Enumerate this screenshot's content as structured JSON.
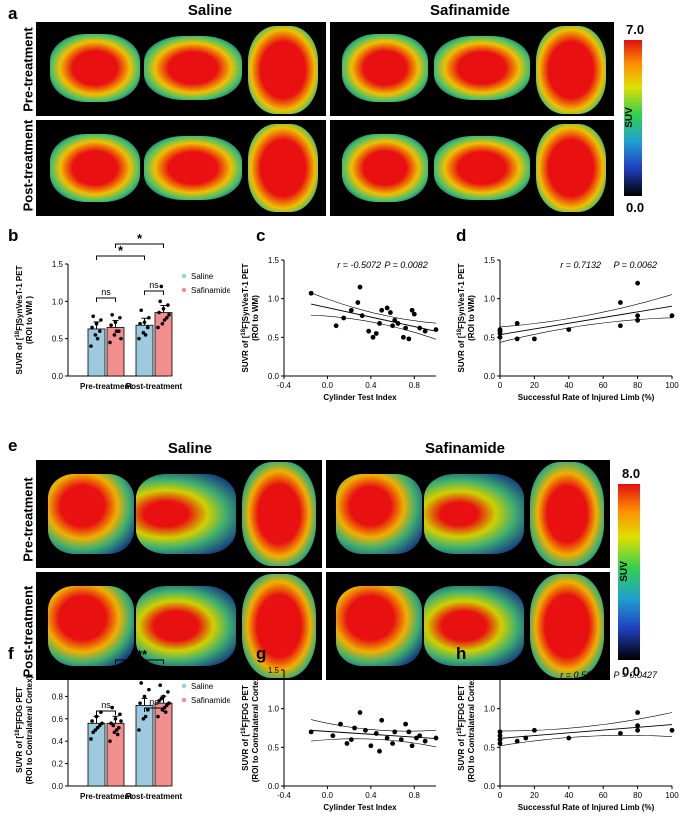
{
  "panel_labels": [
    "a",
    "b",
    "c",
    "d",
    "e",
    "f",
    "g",
    "h"
  ],
  "groups": {
    "saline": "Saline",
    "safinamide": "Safinamide"
  },
  "rows": {
    "pre": "Pre-treatment",
    "post": "Post-treatment"
  },
  "colorbar_a": {
    "max": "7.0",
    "min": "0.0",
    "label": "SUV"
  },
  "colorbar_e": {
    "max": "8.0",
    "min": "0.0",
    "label": "SUV"
  },
  "colors": {
    "saline": "#9ecae1",
    "safinamide": "#f28e8e"
  },
  "chart_data": [
    {
      "id": "b",
      "type": "bar",
      "ylabel": "SUVR of [18F]SynVesT-1 PET (ROI to WM )",
      "ylabel_parts": [
        "SUVR of [",
        "18",
        "F]SynVesT-1 PET"
      ],
      "ylabel_line2": "(ROI to WM )",
      "ylim": [
        0,
        1.5
      ],
      "yticks": [
        "0.0",
        "0.5",
        "1.0",
        "1.5"
      ],
      "categories": [
        "Pre-treatment",
        "Post-treatment"
      ],
      "legend": [
        "Saline",
        "Safinamide"
      ],
      "series": [
        {
          "name": "Saline",
          "values": [
            0.63,
            0.68
          ],
          "points": [
            [
              0.4,
              0.55,
              0.6,
              0.65,
              0.7,
              0.75,
              0.8,
              0.5
            ],
            [
              0.5,
              0.58,
              0.65,
              0.7,
              0.72,
              0.78,
              0.88,
              0.55
            ]
          ]
        },
        {
          "name": "Safinamide",
          "values": [
            0.65,
            0.85
          ],
          "points": [
            [
              0.45,
              0.55,
              0.6,
              0.68,
              0.72,
              0.78,
              0.82,
              0.6,
              0.5
            ],
            [
              0.65,
              0.7,
              0.78,
              0.85,
              0.9,
              0.95,
              1.0,
              0.75,
              0.82,
              1.2
            ]
          ]
        }
      ],
      "annotations": [
        "ns",
        "ns",
        "*",
        "*"
      ]
    },
    {
      "id": "c",
      "type": "scatter",
      "stat_r": "r = -0.5072",
      "stat_p": "P = 0.0082",
      "xlabel": "Cylinder Test Index",
      "ylabel_parts": [
        "SUVR of [",
        "18",
        "F]SynVesT-1 PET"
      ],
      "ylabel_line2": "(ROI to WM)",
      "xlim": [
        -0.4,
        1.0
      ],
      "ylim": [
        0,
        1.5
      ],
      "xticks": [
        "-0.4",
        "0.0",
        "0.4",
        "0.8"
      ],
      "yticks": [
        "0.0",
        "0.5",
        "1.0",
        "1.5"
      ],
      "x": [
        -0.15,
        0.08,
        0.15,
        0.22,
        0.3,
        0.32,
        0.38,
        0.42,
        0.45,
        0.5,
        0.55,
        0.58,
        0.6,
        0.62,
        0.65,
        0.7,
        0.72,
        0.75,
        0.78,
        0.8,
        0.85,
        0.9,
        1.0,
        0.28,
        0.48
      ],
      "y": [
        1.07,
        0.65,
        0.75,
        0.85,
        1.15,
        0.78,
        0.58,
        0.5,
        0.55,
        0.85,
        0.88,
        0.82,
        0.65,
        0.72,
        0.68,
        0.5,
        0.62,
        0.48,
        0.85,
        0.8,
        0.62,
        0.58,
        0.6,
        0.95,
        0.68
      ]
    },
    {
      "id": "d",
      "type": "scatter",
      "stat_r": "r = 0.7132",
      "stat_p": "P = 0.0062",
      "xlabel": "Successful Rate of Injured Limb (%)",
      "ylabel_parts": [
        "SUVR of [",
        "18",
        "F]SynVesT-1 PET"
      ],
      "ylabel_line2": "(ROI to WM)",
      "xlim": [
        0,
        100
      ],
      "ylim": [
        0,
        1.5
      ],
      "xticks": [
        "0",
        "20",
        "40",
        "60",
        "80",
        "100"
      ],
      "yticks": [
        "0.0",
        "0.5",
        "1.0",
        "1.5"
      ],
      "x": [
        0,
        0,
        0,
        0,
        10,
        10,
        20,
        40,
        70,
        70,
        80,
        80,
        80,
        100
      ],
      "y": [
        0.5,
        0.55,
        0.58,
        0.6,
        0.48,
        0.68,
        0.48,
        0.6,
        0.65,
        0.95,
        0.72,
        0.78,
        1.2,
        0.78
      ]
    },
    {
      "id": "f",
      "type": "bar",
      "ylabel_parts": [
        "SUVR of [",
        "18",
        "F]FDG PET"
      ],
      "ylabel_line2": "(ROI to Contralateral Cortex)",
      "ylim": [
        0,
        1.0
      ],
      "yticks": [
        "0.0",
        "0.2",
        "0.4",
        "0.6",
        "0.8",
        "1.0"
      ],
      "categories": [
        "Pre-treatment",
        "Post-treatment"
      ],
      "legend": [
        "Saline",
        "Safinamide"
      ],
      "series": [
        {
          "name": "Saline",
          "values": [
            0.56,
            0.72
          ],
          "points": [
            [
              0.42,
              0.5,
              0.54,
              0.58,
              0.62,
              0.66,
              0.48,
              0.52,
              0.56
            ],
            [
              0.5,
              0.6,
              0.68,
              0.74,
              0.8,
              0.86,
              0.92,
              0.62
            ]
          ]
        },
        {
          "name": "Safinamide",
          "values": [
            0.56,
            0.74
          ],
          "points": [
            [
              0.4,
              0.48,
              0.52,
              0.56,
              0.6,
              0.64,
              0.7,
              0.5,
              0.58,
              0.54,
              0.46
            ],
            [
              0.62,
              0.68,
              0.72,
              0.76,
              0.8,
              0.84,
              0.9,
              0.7,
              0.74,
              0.78,
              0.66
            ]
          ]
        }
      ],
      "annotations": [
        "ns",
        "ns",
        "*",
        "***"
      ]
    },
    {
      "id": "g",
      "type": "scatter",
      "stat_r": "r = -0.3389",
      "stat_p": "P = 0.0903",
      "xlabel": "Cylinder Test Index",
      "ylabel_parts": [
        "SUVR of [",
        "18",
        "F]FDG PET"
      ],
      "ylabel_line2": "(ROI to Contralateral Cortex)",
      "xlim": [
        -0.4,
        1.0
      ],
      "ylim": [
        0,
        1.5
      ],
      "xticks": [
        "-0.4",
        "0.0",
        "0.4",
        "0.8"
      ],
      "yticks": [
        "0.0",
        "0.5",
        "1.0",
        "1.5"
      ],
      "x": [
        -0.15,
        0.05,
        0.12,
        0.18,
        0.25,
        0.3,
        0.35,
        0.4,
        0.45,
        0.5,
        0.55,
        0.6,
        0.62,
        0.68,
        0.72,
        0.78,
        0.82,
        0.85,
        0.9,
        1.0,
        0.22,
        0.48,
        0.75
      ],
      "y": [
        0.7,
        0.65,
        0.8,
        0.55,
        0.75,
        0.95,
        0.72,
        0.52,
        0.68,
        0.85,
        0.62,
        0.55,
        0.7,
        0.6,
        0.8,
        0.52,
        0.62,
        0.65,
        0.58,
        0.62,
        0.6,
        0.45,
        0.7
      ]
    },
    {
      "id": "h",
      "type": "scatter",
      "stat_r": "r = 0.5684",
      "stat_p": "P = 0.0427",
      "xlabel": "Successful Rate of Injured Limb (%)",
      "ylabel_parts": [
        "SUVR of [",
        "18",
        "F]FDG PET"
      ],
      "ylabel_line2": "(ROI to Contralateral Cortex)",
      "xlim": [
        0,
        100
      ],
      "ylim": [
        0,
        1.5
      ],
      "xticks": [
        "0",
        "20",
        "40",
        "60",
        "80",
        "100"
      ],
      "yticks": [
        "0.0",
        "0.5",
        "1.0",
        "1.5"
      ],
      "x": [
        0,
        0,
        0,
        0,
        10,
        15,
        20,
        40,
        70,
        80,
        80,
        80,
        100
      ],
      "y": [
        0.6,
        0.65,
        0.7,
        0.55,
        0.58,
        0.62,
        0.72,
        0.62,
        0.68,
        0.72,
        0.78,
        0.95,
        0.72
      ]
    }
  ]
}
